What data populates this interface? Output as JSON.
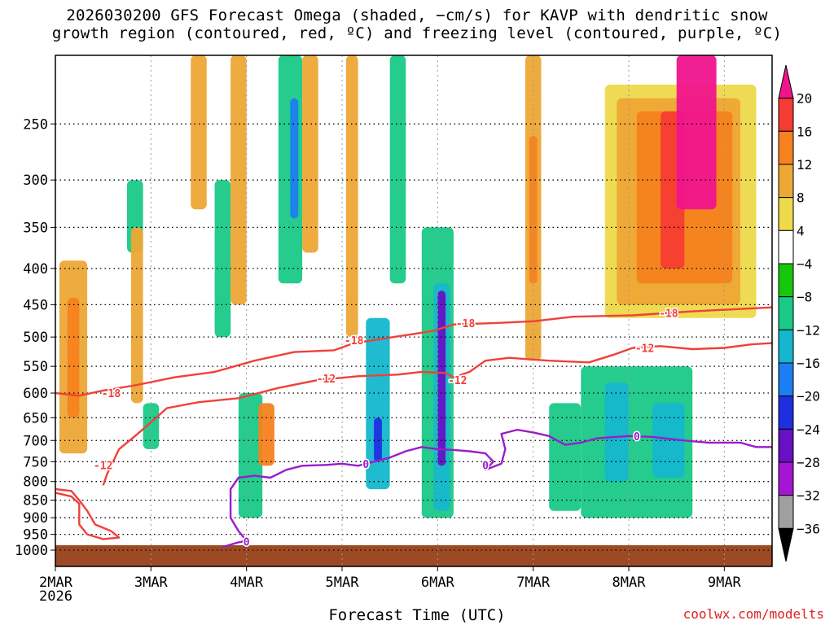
{
  "title": {
    "line1": "2026030200 GFS Forecast Omega (shaded, −cm/s) for KAVP with dendritic snow",
    "line2": "growth region (contoured, red, ºC) and freezing level (contoured, purple, ºC)"
  },
  "xlabel": "Forecast Time (UTC)",
  "credit": "coolwx.com/modelts",
  "colors": {
    "ground": "#9b4a23",
    "dgz": "#f0403a",
    "freezing": "#9a1ccc"
  },
  "chart_data": {
    "type": "heatmap",
    "title": "2026030200 GFS Forecast Omega (shaded, −cm/s) for KAVP",
    "xlabel": "Forecast Time (UTC)",
    "ylabel": "Pressure (hPa)",
    "x_range_hours": [
      0,
      180
    ],
    "y_range_hpa": [
      200,
      1000
    ],
    "x_ticks": [
      {
        "hour": 0,
        "label": "2MAR",
        "sublabel": "2026"
      },
      {
        "hour": 24,
        "label": "3MAR"
      },
      {
        "hour": 48,
        "label": "4MAR"
      },
      {
        "hour": 72,
        "label": "5MAR"
      },
      {
        "hour": 96,
        "label": "6MAR"
      },
      {
        "hour": 120,
        "label": "7MAR"
      },
      {
        "hour": 144,
        "label": "8MAR"
      },
      {
        "hour": 168,
        "label": "9MAR"
      }
    ],
    "y_ticks": [
      250,
      300,
      350,
      400,
      450,
      500,
      550,
      600,
      650,
      700,
      750,
      800,
      850,
      900,
      950,
      1000
    ],
    "colorbar": {
      "labels": [
        "20",
        "16",
        "12",
        "8",
        "4",
        "−4",
        "−8",
        "−12",
        "−16",
        "−20",
        "−24",
        "−28",
        "−32",
        "−36"
      ],
      "colors": [
        "#f0148c",
        "#f53c32",
        "#f5821e",
        "#eda735",
        "#eed94a",
        "#ffffff",
        "#16c70c",
        "#19c987",
        "#14b7cd",
        "#1b7ef2",
        "#1f2fe0",
        "#6611c4",
        "#a516d4",
        "#a0a0a0",
        "#000000"
      ]
    },
    "omega_cells": [
      {
        "t0": 1,
        "t1": 8,
        "p0": 390,
        "p1": 730,
        "v": 8
      },
      {
        "t0": 3,
        "t1": 6,
        "p0": 440,
        "p1": 650,
        "v": 12
      },
      {
        "t0": 18,
        "t1": 22,
        "p0": 300,
        "p1": 380,
        "v": -8
      },
      {
        "t0": 19,
        "t1": 22,
        "p0": 350,
        "p1": 620,
        "v": 8
      },
      {
        "t0": 22,
        "t1": 26,
        "p0": 620,
        "p1": 720,
        "v": -8
      },
      {
        "t0": 34,
        "t1": 38,
        "p0": 200,
        "p1": 330,
        "v": 8
      },
      {
        "t0": 40,
        "t1": 44,
        "p0": 300,
        "p1": 500,
        "v": -8
      },
      {
        "t0": 44,
        "t1": 48,
        "p0": 200,
        "p1": 450,
        "v": 8
      },
      {
        "t0": 46,
        "t1": 52,
        "p0": 600,
        "p1": 900,
        "v": -8
      },
      {
        "t0": 51,
        "t1": 55,
        "p0": 620,
        "p1": 760,
        "v": 12
      },
      {
        "t0": 56,
        "t1": 62,
        "p0": 200,
        "p1": 420,
        "v": -8
      },
      {
        "t0": 59,
        "t1": 61,
        "p0": 230,
        "p1": 340,
        "v": -16
      },
      {
        "t0": 62,
        "t1": 66,
        "p0": 200,
        "p1": 380,
        "v": 8
      },
      {
        "t0": 73,
        "t1": 76,
        "p0": 200,
        "p1": 500,
        "v": 8
      },
      {
        "t0": 78,
        "t1": 84,
        "p0": 470,
        "p1": 820,
        "v": -12
      },
      {
        "t0": 80,
        "t1": 82,
        "p0": 650,
        "p1": 750,
        "v": -20
      },
      {
        "t0": 84,
        "t1": 88,
        "p0": 200,
        "p1": 420,
        "v": -8
      },
      {
        "t0": 92,
        "t1": 100,
        "p0": 350,
        "p1": 900,
        "v": -8
      },
      {
        "t0": 95,
        "t1": 99,
        "p0": 420,
        "p1": 880,
        "v": -12
      },
      {
        "t0": 96,
        "t1": 98,
        "p0": 430,
        "p1": 760,
        "v": -24
      },
      {
        "t0": 118,
        "t1": 122,
        "p0": 200,
        "p1": 540,
        "v": 8
      },
      {
        "t0": 119,
        "t1": 121,
        "p0": 260,
        "p1": 420,
        "v": 12
      },
      {
        "t0": 124,
        "t1": 132,
        "p0": 620,
        "p1": 880,
        "v": -8
      },
      {
        "t0": 132,
        "t1": 160,
        "p0": 550,
        "p1": 900,
        "v": -8
      },
      {
        "t0": 138,
        "t1": 144,
        "p0": 580,
        "p1": 800,
        "v": -12
      },
      {
        "t0": 150,
        "t1": 158,
        "p0": 620,
        "p1": 790,
        "v": -12
      },
      {
        "t0": 138,
        "t1": 176,
        "p0": 220,
        "p1": 470,
        "v": 4
      },
      {
        "t0": 141,
        "t1": 172,
        "p0": 230,
        "p1": 450,
        "v": 8
      },
      {
        "t0": 146,
        "t1": 170,
        "p0": 240,
        "p1": 420,
        "v": 12
      },
      {
        "t0": 152,
        "t1": 158,
        "p0": 240,
        "p1": 400,
        "v": 16
      },
      {
        "t0": 156,
        "t1": 166,
        "p0": 200,
        "p1": 330,
        "v": 20
      }
    ],
    "contours": [
      {
        "name": "-18",
        "color": "dgz",
        "points": [
          [
            0,
            600
          ],
          [
            6,
            605
          ],
          [
            12,
            595
          ],
          [
            20,
            585
          ],
          [
            30,
            570
          ],
          [
            40,
            560
          ],
          [
            50,
            540
          ],
          [
            60,
            525
          ],
          [
            70,
            522
          ],
          [
            75,
            510
          ],
          [
            80,
            505
          ],
          [
            85,
            500
          ],
          [
            90,
            495
          ],
          [
            95,
            490
          ],
          [
            100,
            480
          ],
          [
            110,
            478
          ],
          [
            120,
            475
          ],
          [
            130,
            468
          ],
          [
            145,
            466
          ],
          [
            160,
            460
          ],
          [
            180,
            454
          ]
        ],
        "labels": [
          {
            "t": 14,
            "p": 600,
            "text": "-18"
          },
          {
            "t": 75,
            "p": 505,
            "text": "-18"
          },
          {
            "t": 103,
            "p": 478,
            "text": "-18"
          },
          {
            "t": 154,
            "p": 462,
            "text": "-18"
          }
        ]
      },
      {
        "name": "-12",
        "color": "dgz",
        "points": [
          [
            12,
            810
          ],
          [
            13,
            780
          ],
          [
            14,
            760
          ],
          [
            16,
            720
          ],
          [
            20,
            690
          ],
          [
            24,
            660
          ],
          [
            28,
            630
          ],
          [
            36,
            618
          ],
          [
            46,
            610
          ],
          [
            56,
            590
          ],
          [
            66,
            575
          ],
          [
            76,
            568
          ],
          [
            86,
            565
          ],
          [
            92,
            560
          ],
          [
            98,
            562
          ],
          [
            100,
            570
          ],
          [
            104,
            560
          ],
          [
            108,
            540
          ],
          [
            114,
            535
          ],
          [
            124,
            540
          ],
          [
            134,
            543
          ],
          [
            140,
            530
          ],
          [
            145,
            518
          ],
          [
            152,
            515
          ],
          [
            160,
            520
          ],
          [
            168,
            518
          ],
          [
            175,
            512
          ],
          [
            180,
            510
          ]
        ],
        "labels": [
          {
            "t": 12,
            "p": 758,
            "text": "-12"
          },
          {
            "t": 68,
            "p": 572,
            "text": "-12"
          },
          {
            "t": 101,
            "p": 575,
            "text": "-12"
          },
          {
            "t": 148,
            "p": 518,
            "text": "-12"
          }
        ]
      },
      {
        "name": "-12-low",
        "color": "dgz",
        "points": [
          [
            0,
            830
          ],
          [
            4,
            840
          ],
          [
            6,
            860
          ],
          [
            6,
            920
          ],
          [
            8,
            950
          ],
          [
            12,
            965
          ],
          [
            16,
            960
          ],
          [
            14,
            940
          ],
          [
            10,
            920
          ],
          [
            8,
            880
          ],
          [
            6,
            850
          ],
          [
            4,
            825
          ],
          [
            0,
            820
          ]
        ],
        "labels": []
      },
      {
        "name": "0",
        "color": "freezing",
        "points": [
          [
            42,
            990
          ],
          [
            46,
            975
          ],
          [
            48,
            970
          ],
          [
            46,
            940
          ],
          [
            44,
            900
          ],
          [
            44,
            820
          ],
          [
            46,
            790
          ],
          [
            50,
            785
          ],
          [
            54,
            790
          ],
          [
            58,
            770
          ],
          [
            62,
            760
          ],
          [
            68,
            758
          ],
          [
            72,
            755
          ],
          [
            76,
            760
          ],
          [
            80,
            750
          ],
          [
            84,
            740
          ],
          [
            88,
            725
          ],
          [
            92,
            715
          ],
          [
            96,
            720
          ],
          [
            100,
            722
          ],
          [
            104,
            725
          ],
          [
            108,
            730
          ],
          [
            110,
            750
          ],
          [
            108,
            770
          ],
          [
            112,
            755
          ],
          [
            113,
            720
          ],
          [
            112,
            685
          ],
          [
            116,
            676
          ],
          [
            120,
            682
          ],
          [
            124,
            690
          ],
          [
            128,
            710
          ],
          [
            132,
            705
          ],
          [
            136,
            695
          ],
          [
            144,
            690
          ],
          [
            150,
            692
          ],
          [
            158,
            700
          ],
          [
            164,
            705
          ],
          [
            172,
            705
          ],
          [
            176,
            715
          ],
          [
            180,
            715
          ]
        ],
        "labels": [
          {
            "t": 48,
            "p": 972,
            "text": "0"
          },
          {
            "t": 78,
            "p": 755,
            "text": "0"
          },
          {
            "t": 108,
            "p": 758,
            "text": "0"
          },
          {
            "t": 146,
            "p": 690,
            "text": "0"
          }
        ]
      }
    ]
  }
}
